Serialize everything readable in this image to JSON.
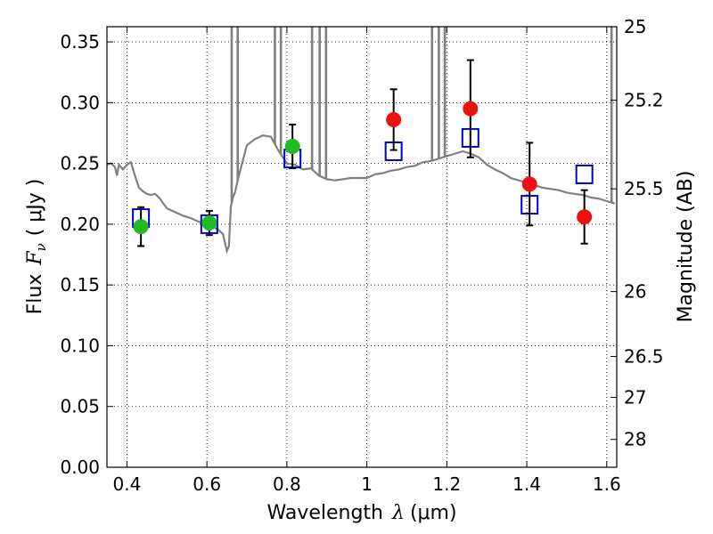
{
  "chart_data": {
    "type": "scatter",
    "xlabel_text": "Wavelength",
    "xlabel_symbol": "λ",
    "xlabel_unit": "(μm)",
    "ylabel_text": "Flux",
    "ylabel_symbol": "F",
    "ylabel_sub": "ν",
    "ylabel_unit": "( μJy )",
    "y2label": "Magnitude (AB)",
    "xlim": [
      0.35,
      1.625
    ],
    "ylim": [
      0.0,
      0.3625
    ],
    "grid": true,
    "x_ticks": [
      0.4,
      0.6,
      0.8,
      1.0,
      1.2,
      1.4,
      1.6
    ],
    "x_tick_labels": [
      "0.4",
      "0.6",
      "0.8",
      "1",
      "1.2",
      "1.4",
      "1.6"
    ],
    "y_ticks": [
      0.0,
      0.05,
      0.1,
      0.15,
      0.2,
      0.25,
      0.3,
      0.35
    ],
    "y_tick_labels": [
      "0.00",
      "0.05",
      "0.10",
      "0.15",
      "0.20",
      "0.25",
      "0.30",
      "0.35"
    ],
    "y2_ticks": [
      25,
      25.2,
      25.5,
      26,
      26.5,
      27,
      28
    ],
    "y2_tick_labels": [
      "25",
      "25.2",
      "25.5",
      "26",
      "26.5",
      "27",
      "28"
    ],
    "colors": {
      "model": "#808080",
      "green": "#22bb22",
      "red": "#ee1111",
      "square": "#0000cc",
      "errorbar": "#000000"
    },
    "model_spectrum": {
      "name": "",
      "x": [
        0.35,
        0.36,
        0.37,
        0.375,
        0.38,
        0.39,
        0.4,
        0.41,
        0.42,
        0.43,
        0.44,
        0.45,
        0.46,
        0.47,
        0.48,
        0.5,
        0.52,
        0.54,
        0.56,
        0.58,
        0.6,
        0.62,
        0.63,
        0.64,
        0.645,
        0.65,
        0.655,
        0.66,
        0.665,
        0.67,
        0.68,
        0.7,
        0.72,
        0.74,
        0.76,
        0.78,
        0.8,
        0.82,
        0.84,
        0.86,
        0.88,
        0.9,
        0.92,
        0.94,
        0.96,
        0.98,
        1.0,
        1.02,
        1.04,
        1.06,
        1.08,
        1.1,
        1.12,
        1.14,
        1.16,
        1.18,
        1.2,
        1.22,
        1.24,
        1.26,
        1.28,
        1.3,
        1.32,
        1.34,
        1.36,
        1.38,
        1.4,
        1.42,
        1.44,
        1.46,
        1.48,
        1.5,
        1.52,
        1.54,
        1.56,
        1.58,
        1.6,
        1.62
      ],
      "y": [
        0.249,
        0.25,
        0.247,
        0.24,
        0.249,
        0.245,
        0.249,
        0.251,
        0.24,
        0.23,
        0.227,
        0.225,
        0.224,
        0.225,
        0.222,
        0.213,
        0.21,
        0.207,
        0.205,
        0.202,
        0.2,
        0.197,
        0.195,
        0.192,
        0.185,
        0.178,
        0.182,
        0.215,
        0.222,
        0.226,
        0.24,
        0.265,
        0.27,
        0.273,
        0.272,
        0.26,
        0.25,
        0.249,
        0.245,
        0.246,
        0.24,
        0.237,
        0.236,
        0.237,
        0.238,
        0.238,
        0.238,
        0.241,
        0.242,
        0.244,
        0.245,
        0.247,
        0.248,
        0.251,
        0.252,
        0.254,
        0.256,
        0.258,
        0.26,
        0.258,
        0.255,
        0.249,
        0.245,
        0.242,
        0.238,
        0.236,
        0.234,
        0.232,
        0.23,
        0.229,
        0.228,
        0.226,
        0.225,
        0.224,
        0.222,
        0.221,
        0.219,
        0.217
      ]
    },
    "spikes": [
      {
        "x": 0.662,
        "y_top": 0.3625
      },
      {
        "x": 0.677,
        "y_top": 0.3625
      },
      {
        "x": 0.77,
        "y_top": 0.3625
      },
      {
        "x": 0.785,
        "y_top": 0.3625
      },
      {
        "x": 0.863,
        "y_top": 0.3625
      },
      {
        "x": 0.882,
        "y_top": 0.3625
      },
      {
        "x": 0.898,
        "y_top": 0.3625
      },
      {
        "x": 1.163,
        "y_top": 0.3625
      },
      {
        "x": 1.18,
        "y_top": 0.3625
      },
      {
        "x": 1.195,
        "y_top": 0.3625
      },
      {
        "x": 1.612,
        "y_top": 0.3625
      }
    ],
    "green_points": [
      {
        "x": 0.435,
        "y": 0.198,
        "err": 0.016
      },
      {
        "x": 0.606,
        "y": 0.201,
        "err": 0.01
      },
      {
        "x": 0.814,
        "y": 0.264,
        "err": 0.018
      }
    ],
    "red_points": [
      {
        "x": 1.067,
        "y": 0.286,
        "err": 0.025
      },
      {
        "x": 1.259,
        "y": 0.295,
        "err": 0.04
      },
      {
        "x": 1.407,
        "y": 0.233,
        "err": 0.034
      },
      {
        "x": 1.544,
        "y": 0.206,
        "err": 0.022
      }
    ],
    "model_squares": [
      {
        "x": 0.435,
        "y": 0.205
      },
      {
        "x": 0.606,
        "y": 0.2
      },
      {
        "x": 0.814,
        "y": 0.254
      },
      {
        "x": 1.067,
        "y": 0.26
      },
      {
        "x": 1.259,
        "y": 0.271
      },
      {
        "x": 1.407,
        "y": 0.216
      },
      {
        "x": 1.544,
        "y": 0.241
      }
    ]
  }
}
